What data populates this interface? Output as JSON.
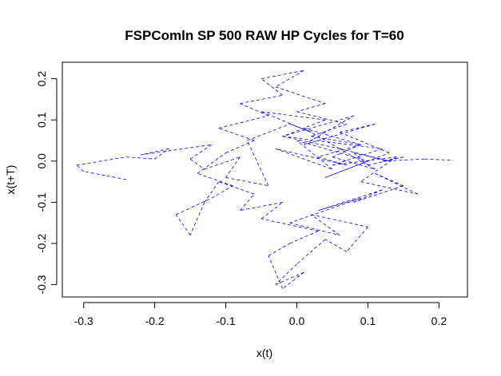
{
  "chart_data": {
    "type": "line",
    "title": "FSPComln SP 500 RAW HP Cycles for T=60",
    "xlabel": "x(t)",
    "ylabel": "x(t+T)",
    "xlim": [
      -0.33,
      0.24
    ],
    "ylim": [
      -0.33,
      0.24
    ],
    "xticks": [
      -0.3,
      -0.2,
      -0.1,
      0.0,
      0.1,
      0.2
    ],
    "xtick_labels": [
      "-0.3",
      "-0.2",
      "-0.1",
      "0.0",
      "0.1",
      "0.2"
    ],
    "yticks": [
      -0.3,
      -0.2,
      -0.1,
      0.0,
      0.1,
      0.2
    ],
    "ytick_labels": [
      "-0.3",
      "-0.2",
      "-0.1",
      "0.0",
      "0.1",
      "0.2"
    ],
    "grid": false,
    "line_color": "#0000ff",
    "line_style": "dashed",
    "series": [
      {
        "x": [
          -0.24,
          -0.27,
          -0.3,
          -0.31,
          -0.24,
          -0.2,
          -0.18,
          -0.22,
          -0.12,
          -0.15,
          -0.13,
          -0.08,
          -0.1,
          -0.04,
          -0.07,
          -0.01,
          0.02,
          -0.05,
          0.04,
          -0.02,
          0.06,
          0.01,
          0.09,
          0.03,
          0.07,
          -0.03,
          0.05,
          0.0,
          0.1,
          0.04,
          0.13,
          0.06,
          0.11,
          0.01,
          0.08,
          -0.02,
          0.12,
          0.05,
          0.14,
          0.09,
          0.17,
          0.11,
          0.15,
          0.08,
          0.12,
          0.03,
          0.09,
          -0.01,
          0.06,
          0.02,
          0.1,
          0.07,
          0.04,
          0.0,
          -0.03,
          0.01,
          -0.02,
          -0.04,
          -0.01,
          0.03,
          -0.05,
          -0.02,
          -0.08,
          -0.06,
          -0.11,
          -0.13,
          -0.15,
          -0.17,
          -0.12,
          -0.09,
          -0.14,
          -0.1,
          -0.06,
          -0.11,
          -0.04,
          -0.08,
          -0.02,
          -0.05,
          0.01,
          -0.03,
          0.04,
          0.0,
          0.07,
          0.02,
          0.09,
          0.05,
          0.11,
          0.06,
          0.13,
          0.08,
          0.1,
          0.15,
          0.12,
          0.18,
          0.22
        ],
        "y": [
          -0.045,
          -0.035,
          -0.025,
          -0.01,
          0.01,
          0.005,
          0.03,
          0.015,
          0.04,
          0.005,
          -0.02,
          0.01,
          -0.04,
          -0.06,
          0.05,
          0.09,
          0.07,
          0.12,
          0.1,
          0.06,
          0.03,
          0.08,
          0.04,
          0.01,
          -0.01,
          0.03,
          -0.02,
          0.05,
          0.0,
          -0.04,
          0.02,
          0.07,
          0.09,
          0.04,
          0.11,
          0.06,
          0.03,
          -0.01,
          0.01,
          -0.05,
          -0.08,
          -0.03,
          -0.06,
          -0.1,
          -0.07,
          -0.12,
          -0.09,
          -0.15,
          -0.18,
          -0.13,
          -0.16,
          -0.22,
          -0.19,
          -0.25,
          -0.3,
          -0.27,
          -0.31,
          -0.23,
          -0.2,
          -0.17,
          -0.14,
          -0.1,
          -0.12,
          -0.08,
          -0.05,
          -0.1,
          -0.18,
          -0.13,
          -0.09,
          -0.06,
          -0.03,
          0.02,
          0.05,
          0.08,
          0.11,
          0.14,
          0.16,
          0.2,
          0.22,
          0.18,
          0.14,
          0.12,
          0.09,
          0.06,
          0.04,
          0.01,
          -0.02,
          0.03,
          0.0,
          0.02,
          -0.01,
          0.01,
          0.0,
          0.005,
          0.002
        ]
      }
    ]
  }
}
